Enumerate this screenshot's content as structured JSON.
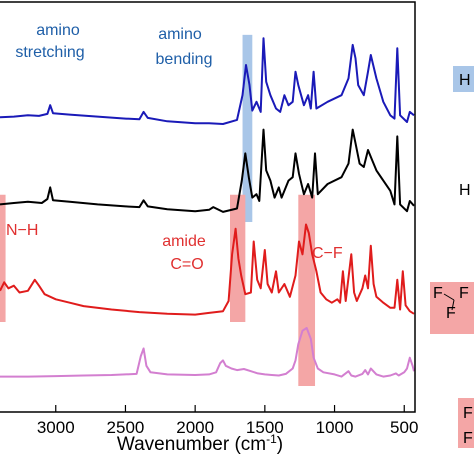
{
  "chart_data": {
    "type": "line",
    "xlabel": "Wavenumber (cm",
    "xlabel_sup": "-1",
    "xlabel_close": ")",
    "x_reversed": true,
    "xlim": [
      3400,
      430
    ],
    "x_ticks": [
      {
        "value": 3000,
        "label": "3000"
      },
      {
        "value": 2500,
        "label": "2500"
      },
      {
        "value": 2000,
        "label": "2000"
      },
      {
        "value": 1500,
        "label": "1500"
      },
      {
        "value": 1000,
        "label": "1000"
      },
      {
        "value": 500,
        "label": "500"
      }
    ],
    "highlight_bands": [
      {
        "from": 1660,
        "to": 1590,
        "color": "#a9c6e8",
        "series_range": [
          "blue",
          "black"
        ]
      },
      {
        "from": 1750,
        "to": 1640,
        "color": "#f4a6a6",
        "series_range": [
          "red",
          "red"
        ]
      },
      {
        "from": 1260,
        "to": 1140,
        "color": "#f4a6a6",
        "series_range": [
          "red",
          "pink"
        ]
      },
      {
        "from": 3400,
        "to": 3360,
        "color": "#f4a6a6",
        "series_range": [
          "red",
          "red"
        ]
      }
    ],
    "annotations": [
      {
        "text": "amino",
        "color": "#1f5fa8"
      },
      {
        "text": "stretching",
        "color": "#1f5fa8"
      },
      {
        "text": "amino",
        "color": "#1f5fa8"
      },
      {
        "text": "bending",
        "color": "#1f5fa8"
      },
      {
        "text": "N−H",
        "color": "#e03030"
      },
      {
        "text": "amide",
        "color": "#e03030"
      },
      {
        "text": "C=O",
        "color": "#e03030"
      },
      {
        "text": "C−F",
        "color": "#e03030"
      }
    ],
    "series": [
      {
        "key": "blue",
        "color": "#1a1ab8",
        "points": [
          [
            3400,
            0.22
          ],
          [
            3300,
            0.23
          ],
          [
            3200,
            0.25
          ],
          [
            3120,
            0.24
          ],
          [
            3060,
            0.27
          ],
          [
            3040,
            0.4
          ],
          [
            3020,
            0.28
          ],
          [
            2900,
            0.26
          ],
          [
            2700,
            0.23
          ],
          [
            2500,
            0.2
          ],
          [
            2400,
            0.19
          ],
          [
            2370,
            0.3
          ],
          [
            2340,
            0.21
          ],
          [
            2200,
            0.16
          ],
          [
            2000,
            0.13
          ],
          [
            1900,
            0.13
          ],
          [
            1800,
            0.12
          ],
          [
            1700,
            0.18
          ],
          [
            1660,
            0.55
          ],
          [
            1635,
            1.0
          ],
          [
            1610,
            0.7
          ],
          [
            1590,
            0.32
          ],
          [
            1560,
            0.45
          ],
          [
            1530,
            0.3
          ],
          [
            1510,
            1.4
          ],
          [
            1490,
            0.75
          ],
          [
            1460,
            0.55
          ],
          [
            1420,
            0.35
          ],
          [
            1390,
            0.3
          ],
          [
            1360,
            0.55
          ],
          [
            1330,
            0.4
          ],
          [
            1300,
            0.45
          ],
          [
            1280,
            0.9
          ],
          [
            1260,
            0.7
          ],
          [
            1220,
            0.4
          ],
          [
            1190,
            0.55
          ],
          [
            1170,
            0.35
          ],
          [
            1150,
            0.9
          ],
          [
            1130,
            0.35
          ],
          [
            1050,
            0.45
          ],
          [
            950,
            0.55
          ],
          [
            900,
            0.8
          ],
          [
            870,
            1.3
          ],
          [
            850,
            1.1
          ],
          [
            830,
            0.7
          ],
          [
            790,
            0.55
          ],
          [
            760,
            0.9
          ],
          [
            740,
            1.15
          ],
          [
            700,
            0.8
          ],
          [
            650,
            0.45
          ],
          [
            600,
            0.25
          ],
          [
            570,
            0.2
          ],
          [
            550,
            1.25
          ],
          [
            530,
            0.25
          ],
          [
            480,
            0.15
          ],
          [
            460,
            0.3
          ],
          [
            430,
            0.25
          ]
        ]
      },
      {
        "key": "black",
        "color": "#000000",
        "points": [
          [
            3400,
            0.2
          ],
          [
            3300,
            0.22
          ],
          [
            3200,
            0.24
          ],
          [
            3100,
            0.22
          ],
          [
            3060,
            0.28
          ],
          [
            3040,
            0.45
          ],
          [
            3020,
            0.26
          ],
          [
            2900,
            0.24
          ],
          [
            2700,
            0.2
          ],
          [
            2500,
            0.17
          ],
          [
            2400,
            0.16
          ],
          [
            2370,
            0.26
          ],
          [
            2340,
            0.17
          ],
          [
            2200,
            0.13
          ],
          [
            2000,
            0.1
          ],
          [
            1900,
            0.12
          ],
          [
            1870,
            0.16
          ],
          [
            1800,
            0.09
          ],
          [
            1700,
            0.14
          ],
          [
            1665,
            0.55
          ],
          [
            1640,
            0.95
          ],
          [
            1615,
            0.6
          ],
          [
            1590,
            0.3
          ],
          [
            1560,
            0.35
          ],
          [
            1540,
            0.25
          ],
          [
            1510,
            1.3
          ],
          [
            1490,
            0.7
          ],
          [
            1460,
            0.55
          ],
          [
            1430,
            0.3
          ],
          [
            1400,
            0.45
          ],
          [
            1380,
            0.3
          ],
          [
            1330,
            0.55
          ],
          [
            1300,
            0.6
          ],
          [
            1280,
            0.95
          ],
          [
            1255,
            0.65
          ],
          [
            1220,
            0.35
          ],
          [
            1190,
            0.5
          ],
          [
            1160,
            0.3
          ],
          [
            1140,
            0.95
          ],
          [
            1120,
            0.35
          ],
          [
            1050,
            0.5
          ],
          [
            950,
            0.6
          ],
          [
            900,
            0.8
          ],
          [
            870,
            1.3
          ],
          [
            850,
            1.1
          ],
          [
            820,
            0.8
          ],
          [
            790,
            0.75
          ],
          [
            760,
            1.0
          ],
          [
            730,
            0.85
          ],
          [
            700,
            0.7
          ],
          [
            650,
            0.55
          ],
          [
            600,
            0.4
          ],
          [
            570,
            0.2
          ],
          [
            550,
            1.2
          ],
          [
            530,
            0.2
          ],
          [
            480,
            0.1
          ],
          [
            460,
            0.25
          ],
          [
            430,
            0.18
          ]
        ]
      },
      {
        "key": "red",
        "color": "#e01c1c",
        "points": [
          [
            3400,
            0.32
          ],
          [
            3370,
            0.42
          ],
          [
            3340,
            0.35
          ],
          [
            3300,
            0.38
          ],
          [
            3260,
            0.3
          ],
          [
            3200,
            0.32
          ],
          [
            3150,
            0.45
          ],
          [
            3120,
            0.38
          ],
          [
            3080,
            0.28
          ],
          [
            3000,
            0.22
          ],
          [
            2900,
            0.18
          ],
          [
            2800,
            0.14
          ],
          [
            2600,
            0.1
          ],
          [
            2400,
            0.07
          ],
          [
            2200,
            0.05
          ],
          [
            2000,
            0.04
          ],
          [
            1900,
            0.06
          ],
          [
            1800,
            0.08
          ],
          [
            1760,
            0.2
          ],
          [
            1735,
            0.75
          ],
          [
            1710,
            1.05
          ],
          [
            1690,
            0.7
          ],
          [
            1670,
            0.5
          ],
          [
            1640,
            0.28
          ],
          [
            1600,
            0.3
          ],
          [
            1580,
            0.9
          ],
          [
            1555,
            0.45
          ],
          [
            1530,
            0.35
          ],
          [
            1500,
            0.8
          ],
          [
            1480,
            0.4
          ],
          [
            1450,
            0.3
          ],
          [
            1420,
            0.55
          ],
          [
            1400,
            0.3
          ],
          [
            1360,
            0.4
          ],
          [
            1320,
            0.25
          ],
          [
            1280,
            0.5
          ],
          [
            1255,
            0.9
          ],
          [
            1230,
            0.75
          ],
          [
            1205,
            1.1
          ],
          [
            1185,
            1.0
          ],
          [
            1160,
            0.75
          ],
          [
            1130,
            0.55
          ],
          [
            1100,
            0.3
          ],
          [
            1060,
            0.22
          ],
          [
            1020,
            0.18
          ],
          [
            980,
            0.22
          ],
          [
            960,
            0.18
          ],
          [
            940,
            0.55
          ],
          [
            920,
            0.2
          ],
          [
            880,
            0.75
          ],
          [
            860,
            0.3
          ],
          [
            840,
            0.2
          ],
          [
            800,
            0.35
          ],
          [
            780,
            0.5
          ],
          [
            760,
            0.35
          ],
          [
            740,
            0.85
          ],
          [
            720,
            0.4
          ],
          [
            700,
            0.25
          ],
          [
            650,
            0.18
          ],
          [
            600,
            0.12
          ],
          [
            570,
            0.12
          ],
          [
            550,
            0.45
          ],
          [
            530,
            0.1
          ],
          [
            510,
            0.55
          ],
          [
            490,
            0.15
          ],
          [
            460,
            0.08
          ],
          [
            430,
            0.05
          ]
        ]
      },
      {
        "key": "pink",
        "color": "#d37fd0",
        "points": [
          [
            3400,
            0.1
          ],
          [
            3200,
            0.1
          ],
          [
            3000,
            0.11
          ],
          [
            2800,
            0.12
          ],
          [
            2600,
            0.13
          ],
          [
            2420,
            0.15
          ],
          [
            2390,
            0.48
          ],
          [
            2370,
            0.62
          ],
          [
            2350,
            0.3
          ],
          [
            2320,
            0.18
          ],
          [
            2200,
            0.14
          ],
          [
            2000,
            0.13
          ],
          [
            1900,
            0.14
          ],
          [
            1850,
            0.18
          ],
          [
            1820,
            0.35
          ],
          [
            1800,
            0.4
          ],
          [
            1780,
            0.3
          ],
          [
            1740,
            0.25
          ],
          [
            1700,
            0.22
          ],
          [
            1650,
            0.24
          ],
          [
            1600,
            0.2
          ],
          [
            1550,
            0.16
          ],
          [
            1500,
            0.14
          ],
          [
            1450,
            0.13
          ],
          [
            1400,
            0.12
          ],
          [
            1350,
            0.15
          ],
          [
            1300,
            0.25
          ],
          [
            1280,
            0.4
          ],
          [
            1260,
            0.7
          ],
          [
            1230,
            0.95
          ],
          [
            1200,
            1.0
          ],
          [
            1170,
            0.8
          ],
          [
            1150,
            0.45
          ],
          [
            1120,
            0.25
          ],
          [
            1080,
            0.18
          ],
          [
            1000,
            0.14
          ],
          [
            950,
            0.1
          ],
          [
            900,
            0.2
          ],
          [
            880,
            0.12
          ],
          [
            850,
            0.1
          ],
          [
            800,
            0.15
          ],
          [
            780,
            0.22
          ],
          [
            760,
            0.14
          ],
          [
            740,
            0.25
          ],
          [
            700,
            0.14
          ],
          [
            650,
            0.1
          ],
          [
            600,
            0.12
          ],
          [
            560,
            0.16
          ],
          [
            540,
            0.12
          ],
          [
            500,
            0.18
          ],
          [
            480,
            0.25
          ],
          [
            460,
            0.45
          ],
          [
            440,
            0.3
          ],
          [
            430,
            0.2
          ]
        ]
      }
    ]
  },
  "side_labels": {
    "row1": "H",
    "row2": "H",
    "row3": "F",
    "row3b": "F",
    "row3c": "F",
    "row4a": "F",
    "row4b": "F"
  }
}
